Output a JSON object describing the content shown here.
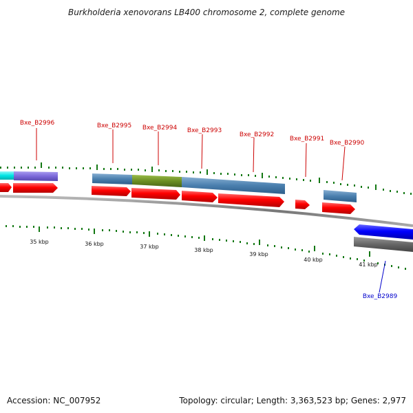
{
  "title": "Burkholderia xenovorans LB400 chromosome 2, complete genome",
  "footer": {
    "accession": "Accession: NC_007952",
    "topology": "Topology: circular; Length: 3,363,523 bp; Genes: 2,977"
  },
  "colors": {
    "forward_gene": "#ff0000",
    "reverse_gene": "#0000ff",
    "label_forward": "#cc0000",
    "label_reverse": "#0000cc",
    "ticks": "#117711",
    "backbone": "#888888",
    "feature_blue": "#4a7fae",
    "feature_green": "#6b8e23",
    "feature_cyan": "#00e5e5",
    "feature_purple": "#7b68d9",
    "feature_gray": "#666666"
  },
  "kbp_labels": [
    "35 kbp",
    "36 kbp",
    "37 kbp",
    "38 kbp",
    "39 kbp",
    "40 kbp",
    "41 kbp"
  ],
  "gene_labels": [
    "Bxe_B2996",
    "Bxe_B2995",
    "Bxe_B2994",
    "Bxe_B2993",
    "Bxe_B2992",
    "Bxe_B2991",
    "Bxe_B2990",
    "Bxe_B2989"
  ]
}
